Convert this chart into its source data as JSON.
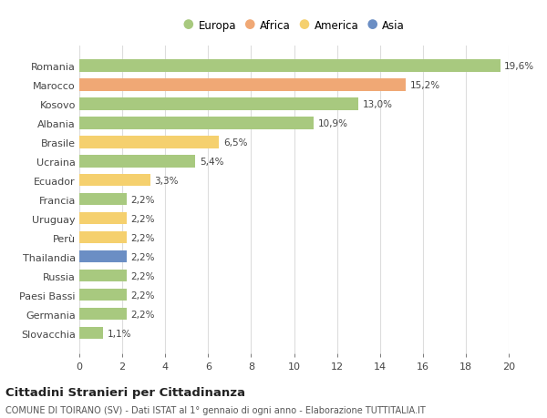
{
  "categories": [
    "Romania",
    "Marocco",
    "Kosovo",
    "Albania",
    "Brasile",
    "Ucraina",
    "Ecuador",
    "Francia",
    "Uruguay",
    "Perù",
    "Thailandia",
    "Russia",
    "Paesi Bassi",
    "Germania",
    "Slovacchia"
  ],
  "values": [
    19.6,
    15.2,
    13.0,
    10.9,
    6.5,
    5.4,
    3.3,
    2.2,
    2.2,
    2.2,
    2.2,
    2.2,
    2.2,
    2.2,
    1.1
  ],
  "labels": [
    "19,6%",
    "15,2%",
    "13,0%",
    "10,9%",
    "6,5%",
    "5,4%",
    "3,3%",
    "2,2%",
    "2,2%",
    "2,2%",
    "2,2%",
    "2,2%",
    "2,2%",
    "2,2%",
    "1,1%"
  ],
  "continent": [
    "Europa",
    "Africa",
    "Europa",
    "Europa",
    "America",
    "Europa",
    "America",
    "Europa",
    "America",
    "America",
    "Asia",
    "Europa",
    "Europa",
    "Europa",
    "Europa"
  ],
  "colors": {
    "Europa": "#a8c97f",
    "Africa": "#f0a875",
    "America": "#f5d06e",
    "Asia": "#6b8ec4"
  },
  "legend_order": [
    "Europa",
    "Africa",
    "America",
    "Asia"
  ],
  "title": "Cittadini Stranieri per Cittadinanza",
  "subtitle": "COMUNE DI TOIRANO (SV) - Dati ISTAT al 1° gennaio di ogni anno - Elaborazione TUTTITALIA.IT",
  "xlim": [
    0,
    20
  ],
  "xticks": [
    0,
    2,
    4,
    6,
    8,
    10,
    12,
    14,
    16,
    18,
    20
  ],
  "background_color": "#ffffff",
  "grid_color": "#dddddd"
}
